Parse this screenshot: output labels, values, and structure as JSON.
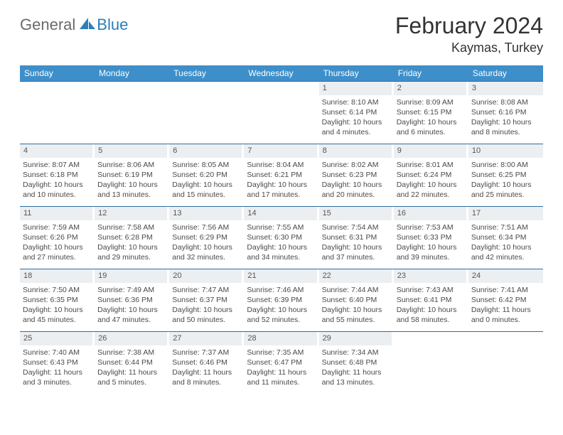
{
  "brand": {
    "general": "General",
    "blue": "Blue"
  },
  "title": "February 2024",
  "location": "Kaymas, Turkey",
  "headers": [
    "Sunday",
    "Monday",
    "Tuesday",
    "Wednesday",
    "Thursday",
    "Friday",
    "Saturday"
  ],
  "colors": {
    "header_bg": "#3e8fc9",
    "header_text": "#ffffff",
    "daynum_bg": "#eceff1",
    "row_border": "#2d6fa3",
    "text": "#333333",
    "body_text": "#4a4a4a",
    "logo_gray": "#6a6a6a",
    "logo_blue": "#2c7fb8"
  },
  "weeks": [
    [
      null,
      null,
      null,
      null,
      {
        "n": "1",
        "sr": "Sunrise: 8:10 AM",
        "ss": "Sunset: 6:14 PM",
        "d1": "Daylight: 10 hours",
        "d2": "and 4 minutes."
      },
      {
        "n": "2",
        "sr": "Sunrise: 8:09 AM",
        "ss": "Sunset: 6:15 PM",
        "d1": "Daylight: 10 hours",
        "d2": "and 6 minutes."
      },
      {
        "n": "3",
        "sr": "Sunrise: 8:08 AM",
        "ss": "Sunset: 6:16 PM",
        "d1": "Daylight: 10 hours",
        "d2": "and 8 minutes."
      }
    ],
    [
      {
        "n": "4",
        "sr": "Sunrise: 8:07 AM",
        "ss": "Sunset: 6:18 PM",
        "d1": "Daylight: 10 hours",
        "d2": "and 10 minutes."
      },
      {
        "n": "5",
        "sr": "Sunrise: 8:06 AM",
        "ss": "Sunset: 6:19 PM",
        "d1": "Daylight: 10 hours",
        "d2": "and 13 minutes."
      },
      {
        "n": "6",
        "sr": "Sunrise: 8:05 AM",
        "ss": "Sunset: 6:20 PM",
        "d1": "Daylight: 10 hours",
        "d2": "and 15 minutes."
      },
      {
        "n": "7",
        "sr": "Sunrise: 8:04 AM",
        "ss": "Sunset: 6:21 PM",
        "d1": "Daylight: 10 hours",
        "d2": "and 17 minutes."
      },
      {
        "n": "8",
        "sr": "Sunrise: 8:02 AM",
        "ss": "Sunset: 6:23 PM",
        "d1": "Daylight: 10 hours",
        "d2": "and 20 minutes."
      },
      {
        "n": "9",
        "sr": "Sunrise: 8:01 AM",
        "ss": "Sunset: 6:24 PM",
        "d1": "Daylight: 10 hours",
        "d2": "and 22 minutes."
      },
      {
        "n": "10",
        "sr": "Sunrise: 8:00 AM",
        "ss": "Sunset: 6:25 PM",
        "d1": "Daylight: 10 hours",
        "d2": "and 25 minutes."
      }
    ],
    [
      {
        "n": "11",
        "sr": "Sunrise: 7:59 AM",
        "ss": "Sunset: 6:26 PM",
        "d1": "Daylight: 10 hours",
        "d2": "and 27 minutes."
      },
      {
        "n": "12",
        "sr": "Sunrise: 7:58 AM",
        "ss": "Sunset: 6:28 PM",
        "d1": "Daylight: 10 hours",
        "d2": "and 29 minutes."
      },
      {
        "n": "13",
        "sr": "Sunrise: 7:56 AM",
        "ss": "Sunset: 6:29 PM",
        "d1": "Daylight: 10 hours",
        "d2": "and 32 minutes."
      },
      {
        "n": "14",
        "sr": "Sunrise: 7:55 AM",
        "ss": "Sunset: 6:30 PM",
        "d1": "Daylight: 10 hours",
        "d2": "and 34 minutes."
      },
      {
        "n": "15",
        "sr": "Sunrise: 7:54 AM",
        "ss": "Sunset: 6:31 PM",
        "d1": "Daylight: 10 hours",
        "d2": "and 37 minutes."
      },
      {
        "n": "16",
        "sr": "Sunrise: 7:53 AM",
        "ss": "Sunset: 6:33 PM",
        "d1": "Daylight: 10 hours",
        "d2": "and 39 minutes."
      },
      {
        "n": "17",
        "sr": "Sunrise: 7:51 AM",
        "ss": "Sunset: 6:34 PM",
        "d1": "Daylight: 10 hours",
        "d2": "and 42 minutes."
      }
    ],
    [
      {
        "n": "18",
        "sr": "Sunrise: 7:50 AM",
        "ss": "Sunset: 6:35 PM",
        "d1": "Daylight: 10 hours",
        "d2": "and 45 minutes."
      },
      {
        "n": "19",
        "sr": "Sunrise: 7:49 AM",
        "ss": "Sunset: 6:36 PM",
        "d1": "Daylight: 10 hours",
        "d2": "and 47 minutes."
      },
      {
        "n": "20",
        "sr": "Sunrise: 7:47 AM",
        "ss": "Sunset: 6:37 PM",
        "d1": "Daylight: 10 hours",
        "d2": "and 50 minutes."
      },
      {
        "n": "21",
        "sr": "Sunrise: 7:46 AM",
        "ss": "Sunset: 6:39 PM",
        "d1": "Daylight: 10 hours",
        "d2": "and 52 minutes."
      },
      {
        "n": "22",
        "sr": "Sunrise: 7:44 AM",
        "ss": "Sunset: 6:40 PM",
        "d1": "Daylight: 10 hours",
        "d2": "and 55 minutes."
      },
      {
        "n": "23",
        "sr": "Sunrise: 7:43 AM",
        "ss": "Sunset: 6:41 PM",
        "d1": "Daylight: 10 hours",
        "d2": "and 58 minutes."
      },
      {
        "n": "24",
        "sr": "Sunrise: 7:41 AM",
        "ss": "Sunset: 6:42 PM",
        "d1": "Daylight: 11 hours",
        "d2": "and 0 minutes."
      }
    ],
    [
      {
        "n": "25",
        "sr": "Sunrise: 7:40 AM",
        "ss": "Sunset: 6:43 PM",
        "d1": "Daylight: 11 hours",
        "d2": "and 3 minutes."
      },
      {
        "n": "26",
        "sr": "Sunrise: 7:38 AM",
        "ss": "Sunset: 6:44 PM",
        "d1": "Daylight: 11 hours",
        "d2": "and 5 minutes."
      },
      {
        "n": "27",
        "sr": "Sunrise: 7:37 AM",
        "ss": "Sunset: 6:46 PM",
        "d1": "Daylight: 11 hours",
        "d2": "and 8 minutes."
      },
      {
        "n": "28",
        "sr": "Sunrise: 7:35 AM",
        "ss": "Sunset: 6:47 PM",
        "d1": "Daylight: 11 hours",
        "d2": "and 11 minutes."
      },
      {
        "n": "29",
        "sr": "Sunrise: 7:34 AM",
        "ss": "Sunset: 6:48 PM",
        "d1": "Daylight: 11 hours",
        "d2": "and 13 minutes."
      },
      null,
      null
    ]
  ]
}
